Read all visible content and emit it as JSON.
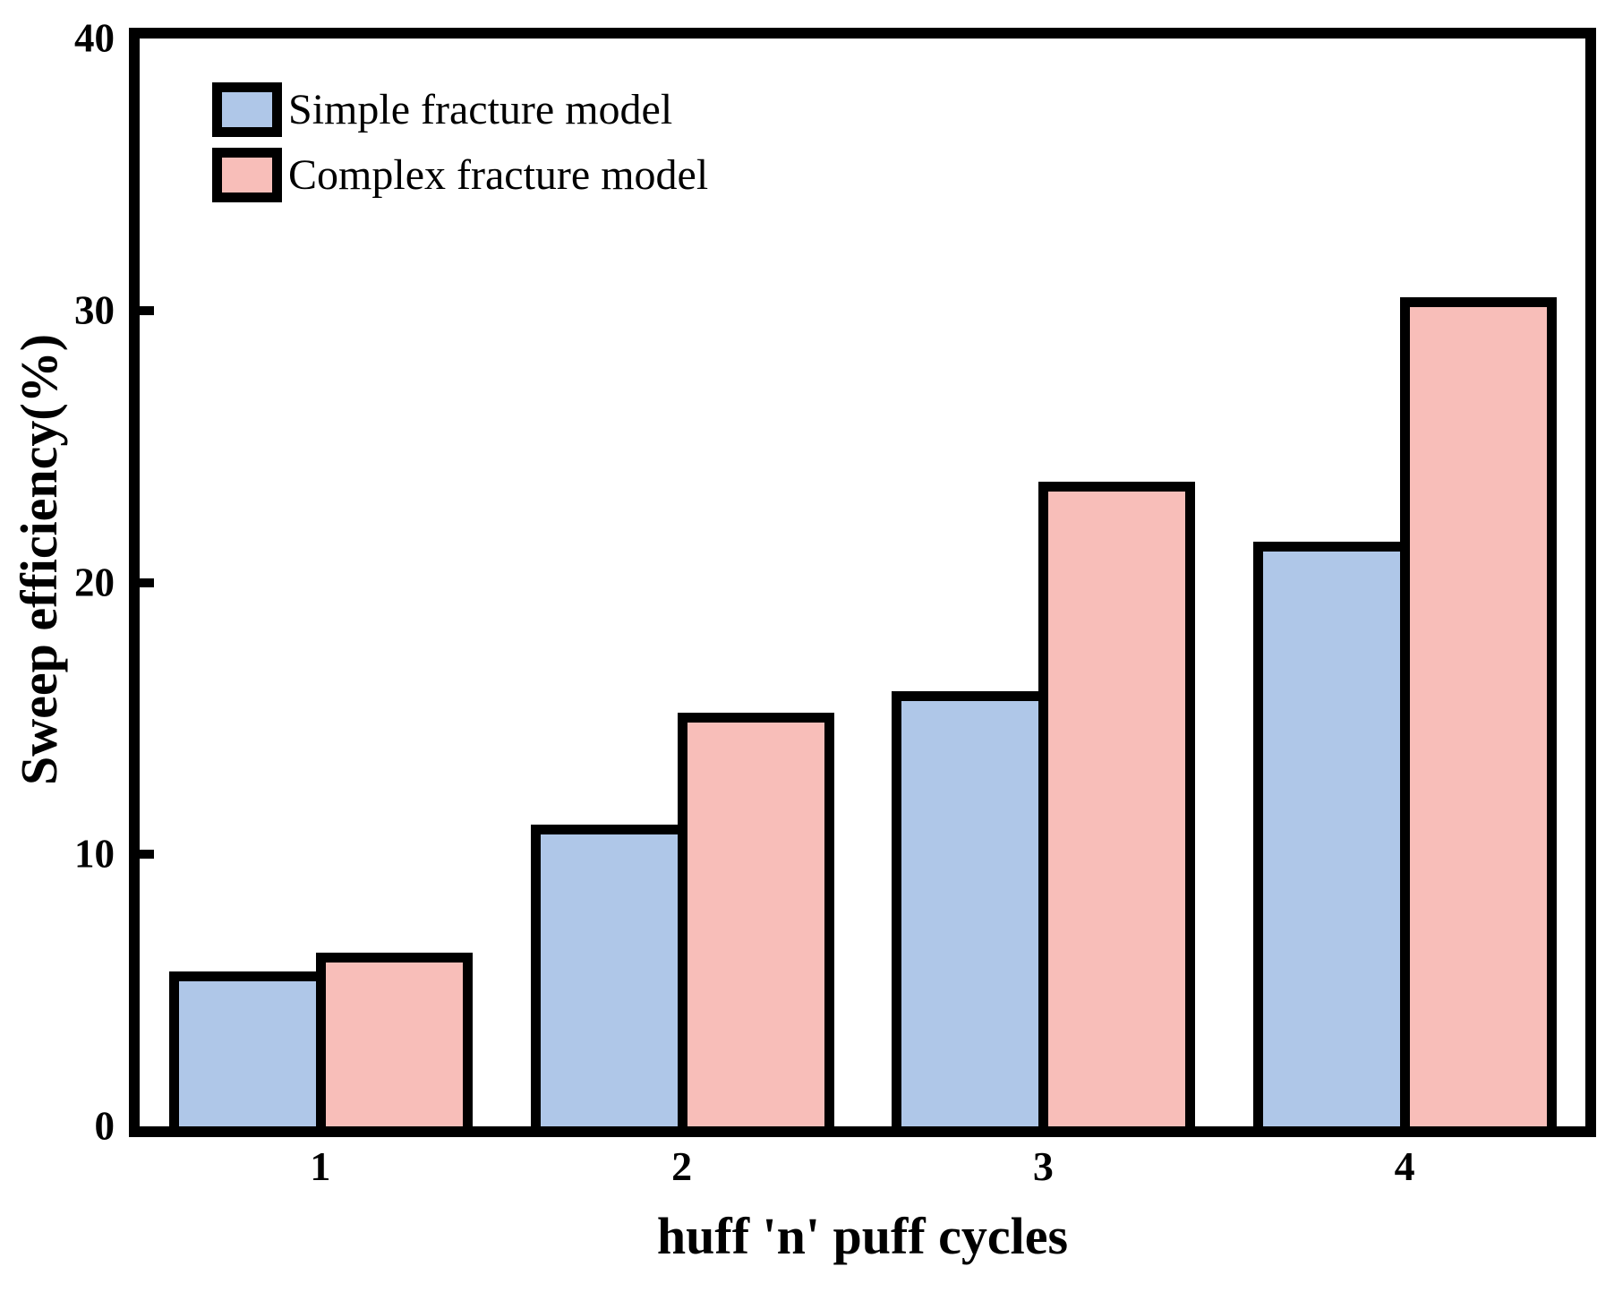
{
  "chart_data": {
    "type": "bar",
    "title": "",
    "xlabel": "huff 'n' puff cycles",
    "ylabel": "Sweep efficiency(%)",
    "categories": [
      "1",
      "2",
      "3",
      "4"
    ],
    "series": [
      {
        "name": "Simple fracture model",
        "color": "#AFC7E8",
        "values": [
          5.7,
          11.1,
          16.0,
          21.5
        ]
      },
      {
        "name": "Complex fracture model",
        "color": "#F8BEB9",
        "values": [
          6.4,
          15.2,
          23.7,
          30.5
        ]
      }
    ],
    "ylim": [
      0,
      40
    ],
    "y_ticks": [
      0,
      10,
      20,
      30,
      40
    ],
    "grid": false,
    "legend_position": "upper-left",
    "bar_edge_color": "#000000",
    "axis_color": "#000000",
    "background_color": "#ffffff"
  }
}
